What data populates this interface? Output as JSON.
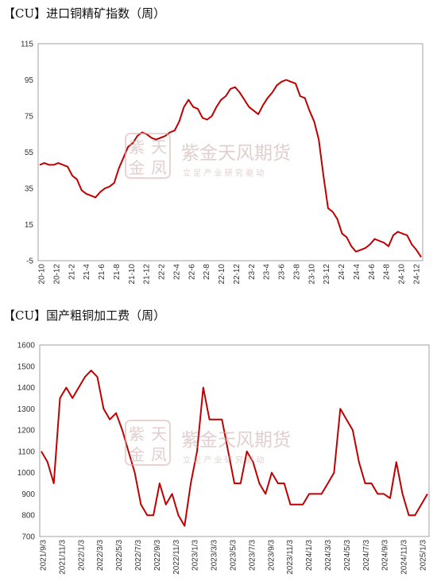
{
  "chart_data": [
    {
      "type": "line",
      "title": "【CU】进口铜精矿指数（周）",
      "ylim": [
        -5,
        115
      ],
      "yticks": [
        -5,
        15,
        35,
        55,
        75,
        95,
        115
      ],
      "xticks": [
        "20-10",
        "20-12",
        "21-2",
        "21-4",
        "21-6",
        "21-8",
        "21-10",
        "21-12",
        "22-2",
        "22-4",
        "22-6",
        "22-8",
        "22-10",
        "22-12",
        "23-2",
        "23-4",
        "23-6",
        "23-8",
        "23-10",
        "23-12",
        "24-2",
        "24-4",
        "24-6",
        "24-8",
        "24-10",
        "24-12"
      ],
      "x_start": "2020-10",
      "x_step_months": 0.25,
      "series": [
        {
          "color": "#c00000",
          "values": [
            48,
            49,
            48,
            48,
            49,
            48,
            47,
            42,
            40,
            34,
            32,
            31,
            30,
            33,
            35,
            36,
            38,
            46,
            52,
            58,
            60,
            64,
            66,
            65,
            63,
            62,
            63,
            64,
            66,
            67,
            72,
            80,
            84,
            80,
            79,
            74,
            73,
            75,
            80,
            84,
            86,
            90,
            91,
            88,
            84,
            80,
            78,
            76,
            81,
            85,
            88,
            92,
            94,
            95,
            94,
            93,
            86,
            85,
            78,
            72,
            62,
            42,
            24,
            22,
            18,
            10,
            8,
            3,
            0,
            1,
            2,
            4,
            7,
            6,
            5,
            3,
            9,
            11,
            10,
            9,
            4,
            1,
            -3
          ]
        }
      ]
    },
    {
      "type": "line",
      "title": "【CU】国产粗铜加工费（周）",
      "ylim": [
        700,
        1600
      ],
      "yticks": [
        700,
        800,
        900,
        1000,
        1100,
        1200,
        1300,
        1400,
        1500,
        1600
      ],
      "xticks": [
        "2021/9/3",
        "2021/11/3",
        "2022/1/3",
        "2022/3/3",
        "2022/5/3",
        "2022/7/3",
        "2022/9/3",
        "2022/11/3",
        "2023/1/3",
        "2023/3/3",
        "2023/5/3",
        "2023/7/3",
        "2023/9/3",
        "2023/11/3",
        "2024/1/3",
        "2024/3/3",
        "2024/5/3",
        "2024/7/3",
        "2024/9/3",
        "2024/11/3",
        "2025/1/3"
      ],
      "series": [
        {
          "color": "#c00000",
          "values": [
            1100,
            1050,
            950,
            1350,
            1400,
            1350,
            1400,
            1450,
            1480,
            1450,
            1300,
            1250,
            1280,
            1200,
            1100,
            1000,
            850,
            800,
            800,
            950,
            850,
            900,
            800,
            750,
            950,
            1100,
            1400,
            1250,
            1250,
            1250,
            1100,
            950,
            950,
            1100,
            1050,
            950,
            900,
            1000,
            950,
            950,
            850,
            850,
            850,
            900,
            900,
            900,
            950,
            1000,
            1300,
            1250,
            1200,
            1050,
            950,
            950,
            900,
            900,
            880,
            1050,
            900,
            800,
            800,
            850,
            900
          ]
        }
      ]
    }
  ],
  "watermark": {
    "name": "紫金天风期货",
    "slogan": "立 足 产 业   研 究 驱 动",
    "seal_glyphs": [
      "紫",
      "天",
      "金",
      "凤"
    ]
  }
}
